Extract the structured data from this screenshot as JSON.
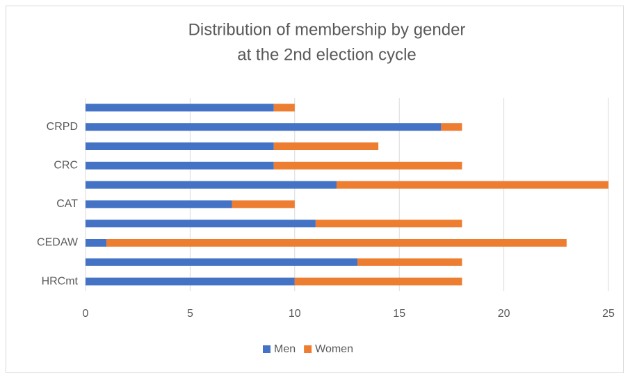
{
  "chart_data": {
    "type": "stacked-barh",
    "title": [
      "Distribution of membership by gender",
      "at the 2nd election cycle"
    ],
    "categories": [
      "HRCmt",
      null,
      "CEDAW",
      null,
      "CAT",
      null,
      "CRC",
      null,
      "CRPD",
      null
    ],
    "series": [
      {
        "name": "Men",
        "color": "#4472c4",
        "values": [
          10,
          13,
          1,
          11,
          7,
          12,
          9,
          9,
          17,
          9
        ]
      },
      {
        "name": "Women",
        "color": "#ed7d31",
        "values": [
          8,
          5,
          22,
          7,
          3,
          13,
          9,
          5,
          1,
          1
        ]
      }
    ],
    "xlim": [
      0,
      25
    ],
    "xticks": [
      0,
      5,
      10,
      15,
      20,
      25
    ],
    "grid": true,
    "legend": "bottom"
  }
}
